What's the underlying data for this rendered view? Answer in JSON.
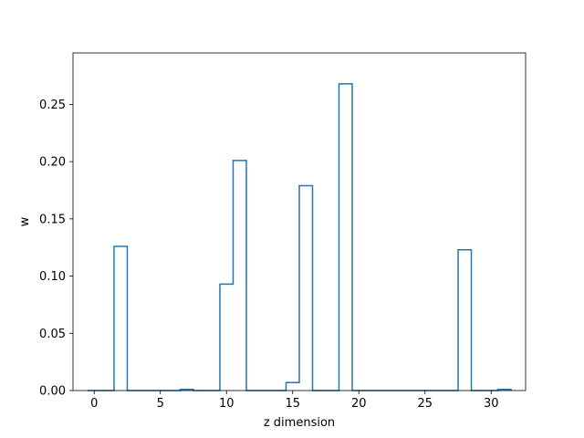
{
  "chart_data": {
    "type": "bar",
    "histtype": "step",
    "xlabel": "z dimension",
    "ylabel": "w",
    "xlim": [
      -1.6,
      32.6
    ],
    "ylim": [
      0,
      0.295
    ],
    "grid": false,
    "color": "#1f77b4",
    "xticks": [
      0,
      5,
      10,
      15,
      20,
      25,
      30
    ],
    "xtick_labels": [
      "0",
      "5",
      "10",
      "15",
      "20",
      "25",
      "30"
    ],
    "yticks": [
      0.0,
      0.05,
      0.1,
      0.15,
      0.2,
      0.25
    ],
    "ytick_labels": [
      "0.00",
      "0.05",
      "0.10",
      "0.15",
      "0.20",
      "0.25"
    ],
    "categories": [
      0,
      1,
      2,
      3,
      4,
      5,
      6,
      7,
      8,
      9,
      10,
      11,
      12,
      13,
      14,
      15,
      16,
      17,
      18,
      19,
      20,
      21,
      22,
      23,
      24,
      25,
      26,
      27,
      28,
      29,
      30,
      31
    ],
    "values": [
      0,
      0,
      0.126,
      0,
      0,
      0,
      0,
      0.001,
      0,
      0,
      0.093,
      0.201,
      0,
      0,
      0,
      0.007,
      0.179,
      0,
      0,
      0.268,
      0,
      0,
      0,
      0,
      0,
      0,
      0,
      0,
      0.123,
      0,
      0,
      0.001
    ]
  }
}
